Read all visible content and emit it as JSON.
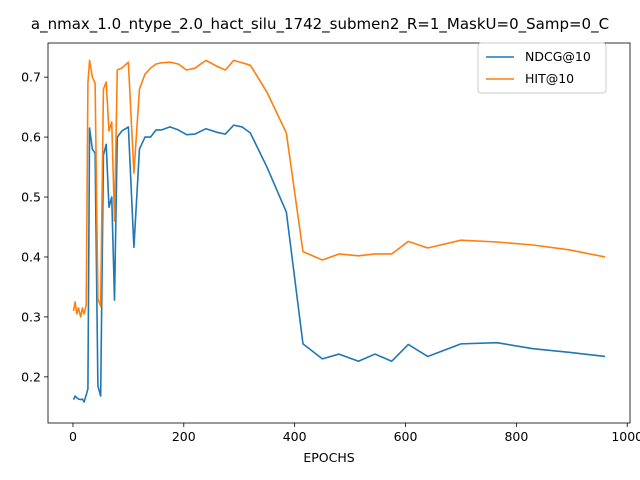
{
  "chart_data": {
    "type": "line",
    "title": "a_nmax_1.0_ntype_2.0_hact_silu_1742_submen2_R=1_MaskU=0_Samp=0_C",
    "xlabel": "EPOCHS",
    "ylabel": "",
    "xlim": [
      -45,
      1005
    ],
    "ylim": [
      0.123,
      0.757
    ],
    "xticks": [
      0,
      200,
      400,
      600,
      800,
      1000
    ],
    "yticks": [
      0.2,
      0.3,
      0.4,
      0.5,
      0.6,
      0.7
    ],
    "xtick_labels": [
      "0",
      "200",
      "400",
      "600",
      "800",
      "1000"
    ],
    "ytick_labels": [
      "0.2",
      "0.3",
      "0.4",
      "0.5",
      "0.6",
      "0.7"
    ],
    "grid": false,
    "legend_position": "top-right",
    "series": [
      {
        "name": "NDCG@10",
        "color": "#1f77b4",
        "x": [
          1,
          4,
          7,
          10,
          14,
          17,
          20,
          24,
          27,
          30,
          35,
          40,
          45,
          50,
          55,
          60,
          65,
          70,
          75,
          80,
          88,
          100,
          110,
          120,
          130,
          140,
          150,
          160,
          175,
          190,
          205,
          220,
          240,
          260,
          275,
          290,
          305,
          320,
          350,
          385,
          415,
          450,
          480,
          515,
          545,
          575,
          605,
          640,
          700,
          765,
          830,
          895,
          960
        ],
        "y": [
          0.162,
          0.168,
          0.165,
          0.163,
          0.162,
          0.163,
          0.158,
          0.17,
          0.18,
          0.615,
          0.58,
          0.573,
          0.185,
          0.168,
          0.57,
          0.588,
          0.483,
          0.5,
          0.328,
          0.6,
          0.61,
          0.617,
          0.416,
          0.58,
          0.6,
          0.6,
          0.612,
          0.612,
          0.617,
          0.612,
          0.604,
          0.605,
          0.614,
          0.608,
          0.605,
          0.62,
          0.617,
          0.607,
          0.55,
          0.475,
          0.255,
          0.23,
          0.238,
          0.226,
          0.238,
          0.226,
          0.254,
          0.234,
          0.255,
          0.257,
          0.247,
          0.241,
          0.234
        ]
      },
      {
        "name": "HIT@10",
        "color": "#ff7f0e",
        "x": [
          1,
          4,
          7,
          10,
          14,
          17,
          20,
          24,
          27,
          30,
          35,
          40,
          45,
          50,
          55,
          60,
          65,
          70,
          75,
          80,
          88,
          100,
          110,
          120,
          130,
          140,
          150,
          160,
          175,
          190,
          205,
          220,
          240,
          260,
          275,
          290,
          305,
          320,
          350,
          385,
          415,
          450,
          480,
          515,
          545,
          575,
          605,
          640,
          700,
          765,
          830,
          895,
          960
        ],
        "y": [
          0.31,
          0.325,
          0.305,
          0.315,
          0.3,
          0.315,
          0.305,
          0.32,
          0.69,
          0.728,
          0.7,
          0.69,
          0.33,
          0.318,
          0.68,
          0.692,
          0.61,
          0.625,
          0.46,
          0.712,
          0.715,
          0.725,
          0.54,
          0.68,
          0.705,
          0.715,
          0.722,
          0.724,
          0.725,
          0.722,
          0.712,
          0.715,
          0.728,
          0.718,
          0.712,
          0.728,
          0.724,
          0.72,
          0.675,
          0.607,
          0.409,
          0.395,
          0.405,
          0.402,
          0.405,
          0.405,
          0.426,
          0.415,
          0.428,
          0.425,
          0.42,
          0.412,
          0.4
        ]
      }
    ]
  }
}
